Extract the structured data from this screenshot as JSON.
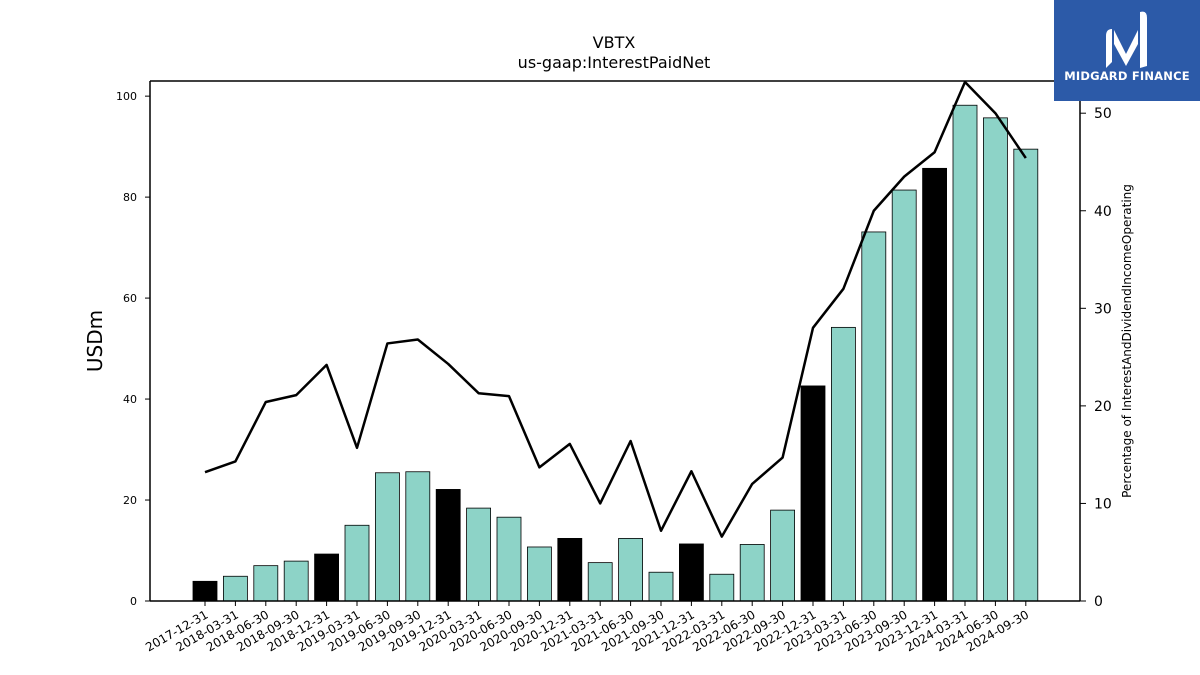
{
  "brand": {
    "name": "MIDGARD FINANCE",
    "bg_color": "#2c5aa8"
  },
  "chart_data": {
    "type": "bar",
    "title": "VBTX",
    "subtitle": "us-gaap:InterestPaidNet",
    "ylabel": "USDm",
    "y2label": "Percentage of InterestAndDividendIncomeOperating",
    "ylim": [
      0,
      103
    ],
    "y2lim": [
      0,
      53.3
    ],
    "yticks": [
      0,
      20,
      40,
      60,
      80,
      100
    ],
    "y2ticks": [
      0,
      10,
      20,
      30,
      40,
      50
    ],
    "categories": [
      "2017-12-31",
      "2018-03-31",
      "2018-06-30",
      "2018-09-30",
      "2018-12-31",
      "2019-03-31",
      "2019-06-30",
      "2019-09-30",
      "2019-12-31",
      "2020-03-31",
      "2020-06-30",
      "2020-09-30",
      "2020-12-31",
      "2021-03-31",
      "2021-06-30",
      "2021-09-30",
      "2021-12-31",
      "2022-03-31",
      "2022-06-30",
      "2022-09-30",
      "2022-12-31",
      "2023-03-31",
      "2023-06-30",
      "2023-09-30",
      "2023-12-31",
      "2024-03-31",
      "2024-06-30",
      "2024-09-30"
    ],
    "series": [
      {
        "kind": "bar",
        "values": [
          3.9,
          4.9,
          7.0,
          7.9,
          9.3,
          15.0,
          25.4,
          25.6,
          22.1,
          18.4,
          16.6,
          10.7,
          12.4,
          7.6,
          12.4,
          5.7,
          11.3,
          5.3,
          11.2,
          18.0,
          42.6,
          54.2,
          73.1,
          81.4,
          85.7,
          98.2,
          95.7,
          89.5
        ],
        "highlight_every": 4,
        "color": "#8dd3c7",
        "highlight_color": "#000000"
      },
      {
        "kind": "line",
        "axis": "right",
        "values": [
          13.2,
          14.3,
          20.4,
          21.1,
          24.2,
          15.7,
          26.4,
          26.8,
          24.3,
          21.3,
          21.0,
          13.7,
          16.1,
          10.0,
          16.4,
          7.2,
          13.3,
          6.6,
          12.0,
          14.7,
          28.0,
          32.0,
          40.0,
          43.5,
          46.0,
          53.2,
          50.0,
          45.4
        ],
        "color": "#000000"
      }
    ]
  }
}
